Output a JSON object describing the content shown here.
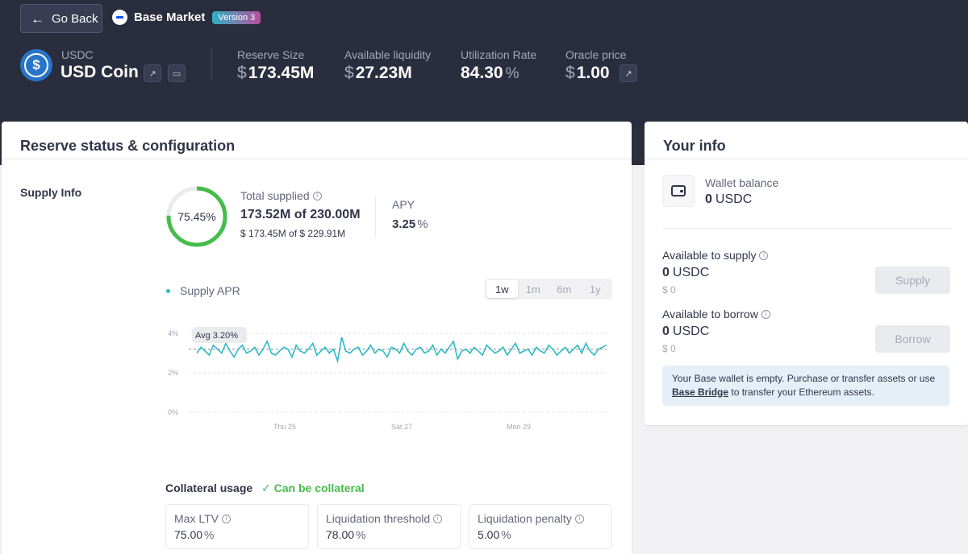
{
  "header": {
    "back_label": "Go Back",
    "market_name": "Base Market",
    "version": "Version 3",
    "coin_symbol": "USDC",
    "coin_name": "USD Coin",
    "stats": [
      {
        "label": "Reserve Size",
        "currency": "$",
        "value": "173.45M"
      },
      {
        "label": "Available liquidity",
        "currency": "$",
        "value": "27.23M"
      },
      {
        "label": "Utilization Rate",
        "value": "84.30",
        "unit": "%"
      },
      {
        "label": "Oracle price",
        "currency": "$",
        "value": "1.00"
      }
    ]
  },
  "reserve": {
    "title": "Reserve status & configuration",
    "supply_info_label": "Supply Info",
    "supplied_fraction": 0.7545,
    "supplied_pct": "75.45%",
    "total_supplied_label": "Total supplied",
    "total_supplied_value": "173.52M of 230.00M",
    "total_supplied_usd": "$ 173.45M of $ 229.91M",
    "apy_label": "APY",
    "apy_value": "3.25",
    "apy_unit": "%",
    "legend_label": "Supply APR",
    "range_tabs": [
      "1w",
      "1m",
      "6m",
      "1y"
    ],
    "active_range": "1w",
    "avg_label": "Avg 3.20%",
    "collateral_label": "Collateral usage",
    "collateral_status": "Can be collateral",
    "collateral_params": [
      {
        "label": "Max LTV",
        "value": "75.00",
        "unit": "%"
      },
      {
        "label": "Liquidation threshold",
        "value": "78.00",
        "unit": "%"
      },
      {
        "label": "Liquidation penalty",
        "value": "5.00",
        "unit": "%"
      }
    ]
  },
  "chart_data": {
    "type": "line",
    "series": [
      {
        "values": [
          3.0,
          3.3,
          3.1,
          2.9,
          3.4,
          3.2,
          3.0,
          3.5,
          3.1,
          2.8,
          3.2,
          3.4,
          3.0,
          3.1,
          3.3,
          2.9,
          3.2,
          3.6,
          3.0,
          2.9,
          3.1,
          3.3,
          3.2,
          2.8,
          3.4,
          3.1,
          3.0,
          3.2,
          3.5,
          2.9,
          3.1,
          3.3,
          3.0,
          3.2,
          2.6,
          3.8,
          3.1,
          3.0,
          3.2,
          3.3,
          2.9,
          3.1,
          3.4,
          3.0,
          3.2,
          3.1,
          2.8,
          3.3,
          3.2,
          3.0,
          3.5,
          3.1,
          2.9,
          3.2,
          3.3,
          3.0,
          3.1,
          3.4,
          2.9,
          3.2,
          3.0,
          3.3,
          3.6,
          2.7,
          3.1,
          3.2,
          3.0,
          3.3,
          3.1,
          2.9,
          3.4,
          3.2,
          3.0,
          3.1,
          3.3,
          2.9,
          3.2,
          3.5,
          3.0,
          3.1,
          3.2,
          2.9,
          3.3,
          3.1,
          3.0,
          3.4,
          3.2,
          2.9,
          3.1,
          3.3,
          3.0,
          3.2,
          3.4,
          3.0,
          3.5,
          3.1,
          2.9,
          3.2,
          3.3,
          3.4
        ]
      }
    ],
    "x_ticks": [
      "Thu 25",
      "Sat 27",
      "Mon 29"
    ],
    "y_ticks": [
      "4%",
      "2%",
      "0%"
    ],
    "ylim": [
      0,
      4
    ],
    "average": 3.2,
    "color": "#2ebac6"
  },
  "your_info": {
    "title": "Your info",
    "wallet_balance_label": "Wallet balance",
    "wallet_balance_value": "0",
    "wallet_balance_unit": "USDC",
    "supply_label": "Available to supply",
    "supply_value": "0",
    "supply_unit": "USDC",
    "supply_usd": "$ 0",
    "supply_button": "Supply",
    "borrow_label": "Available to borrow",
    "borrow_value": "0",
    "borrow_unit": "USDC",
    "borrow_usd": "$ 0",
    "borrow_button": "Borrow",
    "alert_text_1": "Your Base wallet is empty. Purchase or transfer assets or use",
    "alert_link": "Base Bridge",
    "alert_text_2": "to transfer your Ethereum assets."
  }
}
